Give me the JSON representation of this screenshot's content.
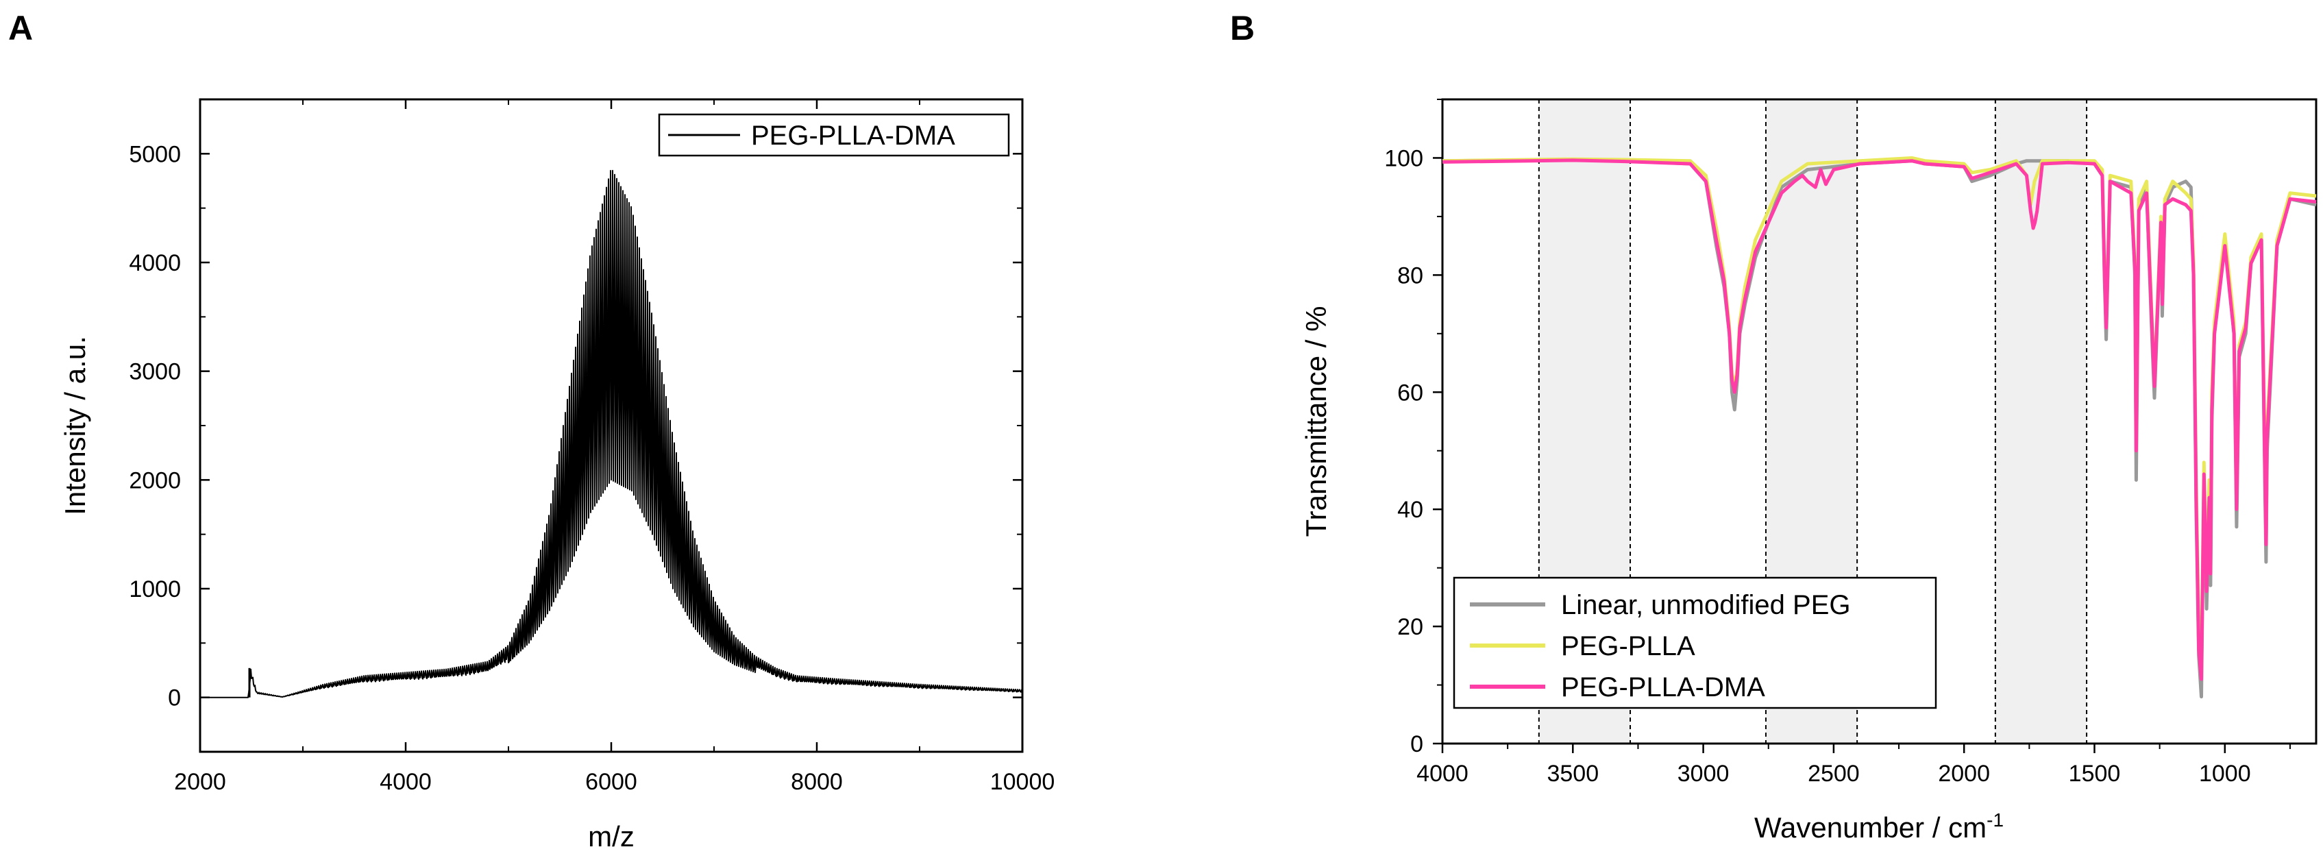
{
  "chart_data": [
    {
      "panel": "A",
      "type": "line",
      "title": "",
      "xlabel": "m/z",
      "ylabel": "Intensity / a.u.",
      "xlim": [
        2000,
        10000
      ],
      "ylim": [
        -500,
        5500
      ],
      "xticks": [
        2000,
        4000,
        6000,
        8000,
        10000
      ],
      "yticks": [
        0,
        1000,
        2000,
        3000,
        4000,
        5000
      ],
      "legend": {
        "position": "top-right",
        "entries": [
          "PEG-PLLA-DMA"
        ]
      },
      "series": [
        {
          "name": "PEG-PLLA-DMA",
          "color": "#000000",
          "description": "dense oligomer comb; upper envelope and lower envelope",
          "spike": {
            "x": 2480,
            "y": 270
          },
          "upper_envelope": {
            "x": [
              2000,
              2470,
              2490,
              2550,
              2800,
              3200,
              3600,
              4000,
              4400,
              4800,
              5000,
              5200,
              5400,
              5600,
              5800,
              6000,
              6200,
              6400,
              6600,
              6800,
              7000,
              7200,
              7400,
              7600,
              7800,
              8200,
              9000,
              10000
            ],
            "y": [
              0,
              0,
              270,
              50,
              5,
              120,
              200,
              230,
              260,
              330,
              480,
              900,
              1700,
              2900,
              4100,
              4870,
              4500,
              3500,
              2400,
              1500,
              900,
              560,
              380,
              270,
              200,
              170,
              120,
              70
            ]
          },
          "lower_envelope": {
            "x": [
              5000,
              5200,
              5400,
              5600,
              5800,
              6000,
              6200,
              6400,
              6600,
              6800,
              7000,
              7200,
              7400
            ],
            "y": [
              320,
              500,
              800,
              1200,
              1700,
              2000,
              1900,
              1500,
              1000,
              650,
              420,
              300,
              230
            ]
          }
        }
      ]
    },
    {
      "panel": "B",
      "type": "line",
      "title": "",
      "xlabel": "Wavenumber / cm",
      "xlabel_superscript": "-1",
      "ylabel": "Transmittance / %",
      "xlim": [
        4000,
        650
      ],
      "ylim": [
        0,
        110
      ],
      "xticks": [
        4000,
        3500,
        3000,
        2500,
        2000,
        1500,
        1000
      ],
      "yticks": [
        0,
        20,
        40,
        60,
        80,
        100
      ],
      "shaded_regions": [
        [
          3630,
          3280
        ],
        [
          2760,
          2410
        ],
        [
          1880,
          1530
        ]
      ],
      "legend": {
        "position": "bottom-left",
        "entries": [
          "Linear, unmodified PEG",
          "PEG-PLLA",
          "PEG-PLLA-DMA"
        ]
      },
      "series": [
        {
          "name": "Linear, unmodified PEG",
          "color": "#999999",
          "x": [
            4000,
            3500,
            3300,
            3050,
            2990,
            2950,
            2920,
            2900,
            2890,
            2880,
            2870,
            2860,
            2840,
            2800,
            2700,
            2600,
            2400,
            2200,
            2150,
            2000,
            1970,
            1900,
            1800,
            1760,
            1745,
            1730,
            1700,
            1600,
            1500,
            1470,
            1462,
            1455,
            1440,
            1360,
            1345,
            1340,
            1330,
            1300,
            1282,
            1270,
            1245,
            1240,
            1230,
            1200,
            1150,
            1130,
            1120,
            1110,
            1100,
            1090,
            1080,
            1070,
            1060,
            1055,
            1050,
            1040,
            1000,
            965,
            955,
            945,
            920,
            900,
            860,
            845,
            842,
            838,
            800,
            750,
            650
          ],
          "y": [
            99.5,
            99.7,
            99.5,
            99,
            96,
            85,
            78,
            70,
            60,
            57,
            62,
            70,
            75,
            83,
            95,
            98,
            99,
            99.5,
            99,
            98.5,
            96,
            97,
            99,
            99.5,
            99.5,
            99.5,
            99.5,
            99.5,
            99,
            97,
            80,
            69,
            96,
            95,
            80,
            45,
            92,
            95,
            72,
            59,
            89,
            73,
            92,
            95,
            96,
            95,
            80,
            40,
            15,
            8,
            45,
            23,
            40,
            27,
            55,
            70,
            86,
            70,
            37,
            66,
            70,
            82,
            86,
            40,
            31,
            50,
            85,
            93,
            92
          ]
        },
        {
          "name": "PEG-PLLA",
          "color": "#e8e85a",
          "x": [
            4000,
            3500,
            3300,
            3050,
            2990,
            2950,
            2920,
            2900,
            2890,
            2880,
            2870,
            2860,
            2840,
            2800,
            2700,
            2600,
            2400,
            2200,
            2150,
            2000,
            1970,
            1900,
            1800,
            1760,
            1745,
            1730,
            1700,
            1600,
            1500,
            1470,
            1462,
            1455,
            1440,
            1360,
            1345,
            1340,
            1330,
            1300,
            1282,
            1270,
            1245,
            1240,
            1230,
            1200,
            1150,
            1130,
            1120,
            1110,
            1100,
            1090,
            1080,
            1070,
            1060,
            1055,
            1050,
            1040,
            1000,
            965,
            955,
            945,
            920,
            900,
            860,
            845,
            842,
            838,
            800,
            750,
            650
          ],
          "y": [
            99.5,
            99.8,
            99.7,
            99.5,
            97,
            88,
            80,
            71,
            63,
            61,
            64,
            72,
            78,
            86,
            96,
            99,
            99.5,
            100,
            99.5,
            99,
            97.5,
            98,
            99.5,
            97,
            92,
            96,
            99.5,
            99.5,
            99.5,
            98,
            82,
            72,
            97,
            96,
            82,
            52,
            93,
            96,
            75,
            62,
            90,
            76,
            93,
            96,
            94,
            93,
            82,
            45,
            20,
            13,
            48,
            28,
            45,
            32,
            60,
            72,
            87,
            72,
            42,
            68,
            72,
            83,
            87,
            44,
            36,
            54,
            86,
            94,
            93.5
          ]
        },
        {
          "name": "PEG-PLLA-DMA",
          "color": "#ff3da6",
          "x": [
            4000,
            3500,
            3300,
            3050,
            2990,
            2950,
            2920,
            2900,
            2890,
            2880,
            2870,
            2860,
            2840,
            2800,
            2700,
            2650,
            2620,
            2600,
            2570,
            2550,
            2530,
            2500,
            2400,
            2200,
            2150,
            2000,
            1970,
            1900,
            1800,
            1760,
            1745,
            1735,
            1728,
            1720,
            1700,
            1600,
            1500,
            1470,
            1462,
            1455,
            1440,
            1360,
            1345,
            1340,
            1330,
            1300,
            1282,
            1270,
            1245,
            1240,
            1230,
            1200,
            1150,
            1130,
            1120,
            1110,
            1100,
            1090,
            1080,
            1070,
            1060,
            1055,
            1050,
            1040,
            1000,
            965,
            955,
            945,
            920,
            900,
            860,
            845,
            842,
            838,
            800,
            750,
            650
          ],
          "y": [
            99.3,
            99.6,
            99.4,
            99,
            96,
            86,
            79,
            70,
            62,
            60,
            63,
            71,
            76,
            84,
            94,
            96,
            97,
            96,
            95,
            98,
            95.5,
            98,
            99,
            99.5,
            99,
            98.5,
            96.5,
            97.5,
            99,
            97,
            91,
            88,
            89,
            91,
            99,
            99.2,
            99,
            97,
            81,
            71,
            96,
            94,
            81,
            50,
            91,
            94,
            74,
            61,
            89,
            75,
            92,
            93,
            92,
            91,
            80,
            42,
            16,
            11,
            46,
            26,
            42,
            29,
            57,
            70,
            85,
            70,
            40,
            67,
            71,
            82,
            86,
            42,
            34,
            52,
            85,
            93,
            92.5
          ]
        }
      ]
    }
  ]
}
